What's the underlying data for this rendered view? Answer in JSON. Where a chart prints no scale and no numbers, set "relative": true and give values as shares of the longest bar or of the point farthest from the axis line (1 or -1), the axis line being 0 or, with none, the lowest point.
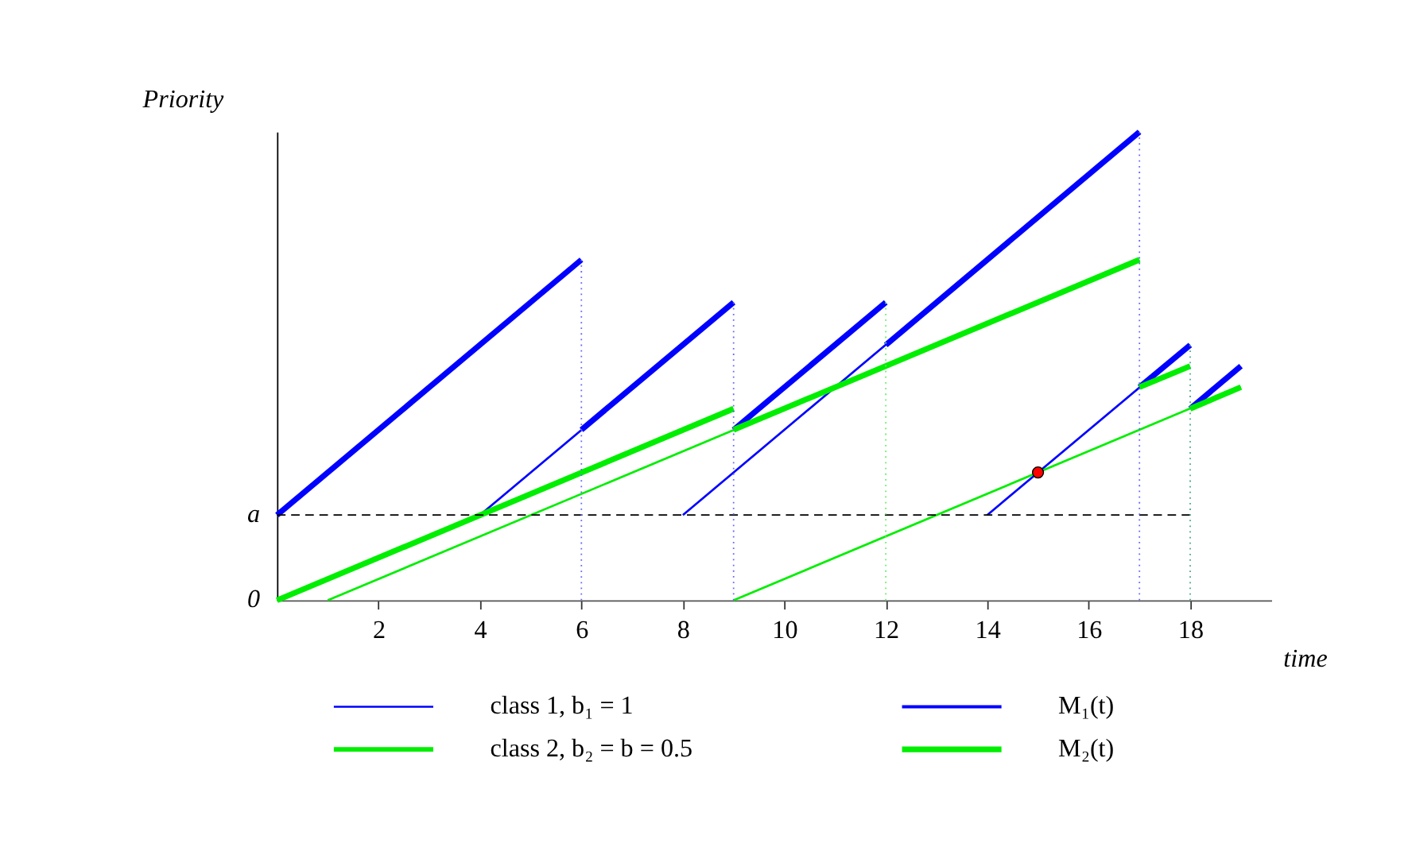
{
  "chart_data": {
    "type": "line",
    "xlabel": "time",
    "ylabel": "Priority",
    "relative": true,
    "xlim": [
      0,
      19.6
    ],
    "xticks": [
      2,
      4,
      6,
      8,
      10,
      12,
      14,
      16,
      18
    ],
    "annotations": [
      {
        "text": "a",
        "x": 0,
        "y": 0.182
      },
      {
        "text": "0",
        "x": 0,
        "y": 0
      }
    ],
    "grid": false,
    "legend": "bottom",
    "marker": "none",
    "series": [
      {
        "name": "class 1, b₁ = 1",
        "color": "#0000ff",
        "x": [
          4,
          9
        ],
        "values": [
          0.182,
          0.636
        ]
      },
      {
        "color": "#0000ff",
        "x": [
          8,
          17
        ],
        "values": [
          0.182,
          1
        ]
      },
      {
        "color": "#0000ff",
        "x": [
          14,
          18
        ],
        "values": [
          0.182,
          0.545
        ]
      },
      {
        "name": "M₁(t)",
        "color": "#0000ff",
        "x": [
          0,
          6
        ],
        "values": [
          0.182,
          0.727
        ]
      },
      {
        "color": "#0000ff",
        "x": [
          6,
          9
        ],
        "values": [
          0.364,
          0.636
        ]
      },
      {
        "color": "#0000ff",
        "x": [
          9,
          12
        ],
        "values": [
          0.364,
          0.636
        ]
      },
      {
        "color": "#0000ff",
        "x": [
          12,
          17
        ],
        "values": [
          0.545,
          1
        ]
      },
      {
        "color": "#0000ff",
        "x": [
          17,
          18
        ],
        "values": [
          0.455,
          0.545
        ]
      },
      {
        "color": "#0000ff",
        "x": [
          18,
          19
        ],
        "values": [
          0.409,
          0.5
        ]
      },
      {
        "name": "class 2, b₂ = b = 0.5",
        "color": "#00ee00",
        "x": [
          1,
          17
        ],
        "values": [
          0,
          0.727
        ]
      },
      {
        "color": "#00ee00",
        "x": [
          9,
          19
        ],
        "values": [
          0,
          0.455
        ]
      },
      {
        "name": "M₂(t)",
        "color": "#00ee00",
        "x": [
          0,
          9
        ],
        "values": [
          0,
          0.409
        ]
      },
      {
        "color": "#00ee00",
        "x": [
          9,
          17
        ],
        "values": [
          0.364,
          0.727
        ]
      },
      {
        "color": "#00ee00",
        "x": [
          17,
          18
        ],
        "values": [
          0.455,
          0.5
        ]
      },
      {
        "color": "#00ee00",
        "x": [
          18,
          19
        ],
        "values": [
          0.409,
          0.455
        ]
      },
      {
        "color": "#000000",
        "line_style": "dashed",
        "x": [
          0,
          18
        ],
        "values": [
          0.182,
          0.182
        ]
      },
      {
        "color": "#6666ff",
        "line_style": "dotted",
        "x": [
          6,
          6
        ],
        "values": [
          0,
          0.727
        ]
      },
      {
        "color": "#6666ff",
        "line_style": "dotted",
        "x": [
          9,
          9
        ],
        "values": [
          0,
          0.636
        ]
      },
      {
        "color": "#66ee66",
        "line_style": "dotted",
        "x": [
          12,
          12
        ],
        "values": [
          0,
          0.636
        ]
      },
      {
        "color": "#6666ff",
        "line_style": "dotted",
        "x": [
          17,
          17
        ],
        "values": [
          0,
          1
        ]
      },
      {
        "color": "#44aa88",
        "line_style": "dotted",
        "x": [
          18,
          18
        ],
        "values": [
          0,
          0.545
        ]
      },
      {
        "type": "scatter",
        "color": "#ff0000",
        "marker": "circle",
        "x": [
          15
        ],
        "values": [
          0.273
        ]
      }
    ]
  }
}
